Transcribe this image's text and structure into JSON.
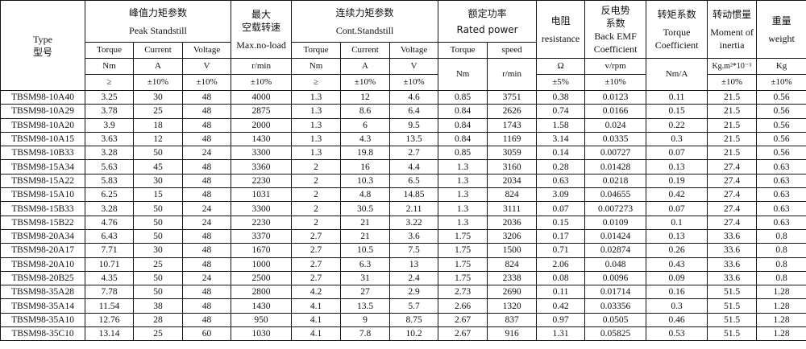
{
  "header": {
    "type_en": "Type",
    "type_zh": "型号",
    "peak_zh": "峰值力矩参数",
    "peak_en": "Peak Standstill",
    "max_zh1": "最大",
    "max_zh2": "空载转速",
    "max_en": "Max.no-load",
    "cont_zh": "连续力矩参数",
    "cont_en": "Cont.Standstill",
    "rated_zh": "额定功率",
    "rated_en": "Rated power",
    "res_zh": "电阻",
    "res_en": "resistance",
    "emf_zh1": "反电势",
    "emf_zh2": "系数",
    "emf_en1": "Back EMF",
    "emf_en2": "Coefficient",
    "tc_zh": "转矩系数",
    "tc_en1": "Torque",
    "tc_en2": "Coefficient",
    "inertia_zh": "转动惯量",
    "inertia_en1": "Moment of",
    "inertia_en2": "inertia",
    "weight_zh": "重量",
    "weight_en": "weight",
    "sub": [
      "Torque",
      "Current",
      "Voltage",
      "Torque",
      "Current",
      "Voltage",
      "Torque",
      "speed"
    ],
    "units": [
      "Nm",
      "A",
      "V",
      "r/min",
      "Nm",
      "A",
      "V",
      "Nm",
      "r/min",
      "Ω",
      "v/rpm",
      "Nm/A",
      "Kg.m²*10⁻⁵",
      "Kg"
    ],
    "tolerances": [
      "≥",
      "±10%",
      "±10%",
      "±10%",
      "≥",
      "±10%",
      "±10%",
      "±5%",
      "±10%",
      "±10%",
      "±10%"
    ]
  },
  "rows": [
    [
      "TBSM98-10A40",
      "3.25",
      "30",
      "48",
      "4000",
      "1.3",
      "12",
      "4.6",
      "0.85",
      "3751",
      "0.38",
      "0.0123",
      "0.11",
      "21.5",
      "0.56"
    ],
    [
      "TBSM98-10A29",
      "3.78",
      "25",
      "48",
      "2875",
      "1.3",
      "8.6",
      "6.4",
      "0.84",
      "2626",
      "0.74",
      "0.0166",
      "0.15",
      "21.5",
      "0.56"
    ],
    [
      "TBSM98-10A20",
      "3.9",
      "18",
      "48",
      "2000",
      "1.3",
      "6",
      "9.5",
      "0.84",
      "1743",
      "1.58",
      "0.024",
      "0.22",
      "21.5",
      "0.56"
    ],
    [
      "TBSM98-10A15",
      "3.63",
      "12",
      "48",
      "1430",
      "1.3",
      "4.3",
      "13.5",
      "0.84",
      "1169",
      "3.14",
      "0.0335",
      "0.3",
      "21.5",
      "0.56"
    ],
    [
      "TBSM98-10B33",
      "3.28",
      "50",
      "24",
      "3300",
      "1.3",
      "19.8",
      "2.7",
      "0.85",
      "3059",
      "0.14",
      "0.00727",
      "0.07",
      "21.5",
      "0.56"
    ],
    [
      "TBSM98-15A34",
      "5.63",
      "45",
      "48",
      "3360",
      "2",
      "16",
      "4.4",
      "1.3",
      "3160",
      "0.28",
      "0.01428",
      "0.13",
      "27.4",
      "0.63"
    ],
    [
      "TBSM98-15A22",
      "5.83",
      "30",
      "48",
      "2230",
      "2",
      "10.3",
      "6.5",
      "1.3",
      "2034",
      "0.63",
      "0.0218",
      "0.19",
      "27.4",
      "0.63"
    ],
    [
      "TBSM98-15A10",
      "6.25",
      "15",
      "48",
      "1031",
      "2",
      "4.8",
      "14.85",
      "1.3",
      "824",
      "3.09",
      "0.04655",
      "0.42",
      "27.4",
      "0.63"
    ],
    [
      "TBSM98-15B33",
      "3.28",
      "50",
      "24",
      "3300",
      "2",
      "30.5",
      "2.11",
      "1.3",
      "3111",
      "0.07",
      "0.007273",
      "0.07",
      "27.4",
      "0.63"
    ],
    [
      "TBSM98-15B22",
      "4.76",
      "50",
      "24",
      "2230",
      "2",
      "21",
      "3.22",
      "1.3",
      "2036",
      "0.15",
      "0.0109",
      "0.1",
      "27.4",
      "0.63"
    ],
    [
      "TBSM98-20A34",
      "6.43",
      "50",
      "48",
      "3370",
      "2.7",
      "21",
      "3.6",
      "1.75",
      "3206",
      "0.17",
      "0.01424",
      "0.13",
      "33.6",
      "0.8"
    ],
    [
      "TBSM98-20A17",
      "7.71",
      "30",
      "48",
      "1670",
      "2.7",
      "10.5",
      "7.5",
      "1.75",
      "1500",
      "0.71",
      "0.02874",
      "0.26",
      "33.6",
      "0.8"
    ],
    [
      "TBSM98-20A10",
      "10.71",
      "25",
      "48",
      "1000",
      "2.7",
      "6.3",
      "13",
      "1.75",
      "824",
      "2.06",
      "0.048",
      "0.43",
      "33.6",
      "0.8"
    ],
    [
      "TBSM98-20B25",
      "4.35",
      "50",
      "24",
      "2500",
      "2.7",
      "31",
      "2.4",
      "1.75",
      "2338",
      "0.08",
      "0.0096",
      "0.09",
      "33.6",
      "0.8"
    ],
    [
      "TBSM98-35A28",
      "7.78",
      "50",
      "48",
      "2800",
      "4.2",
      "27",
      "2.9",
      "2.73",
      "2690",
      "0.11",
      "0.01714",
      "0.16",
      "51.5",
      "1.28"
    ],
    [
      "TBSM98-35A14",
      "11.54",
      "38",
      "48",
      "1430",
      "4.1",
      "13.5",
      "5.7",
      "2.66",
      "1320",
      "0.42",
      "0.03356",
      "0.3",
      "51.5",
      "1.28"
    ],
    [
      "TBSM98-35A10",
      "12.76",
      "28",
      "48",
      "950",
      "4.1",
      "9",
      "8.75",
      "2.67",
      "837",
      "0.97",
      "0.0505",
      "0.46",
      "51.5",
      "1.28"
    ],
    [
      "TBSM98-35C10",
      "13.14",
      "25",
      "60",
      "1030",
      "4.1",
      "7.8",
      "10.2",
      "2.67",
      "916",
      "1.31",
      "0.05825",
      "0.53",
      "51.5",
      "1.28"
    ]
  ]
}
